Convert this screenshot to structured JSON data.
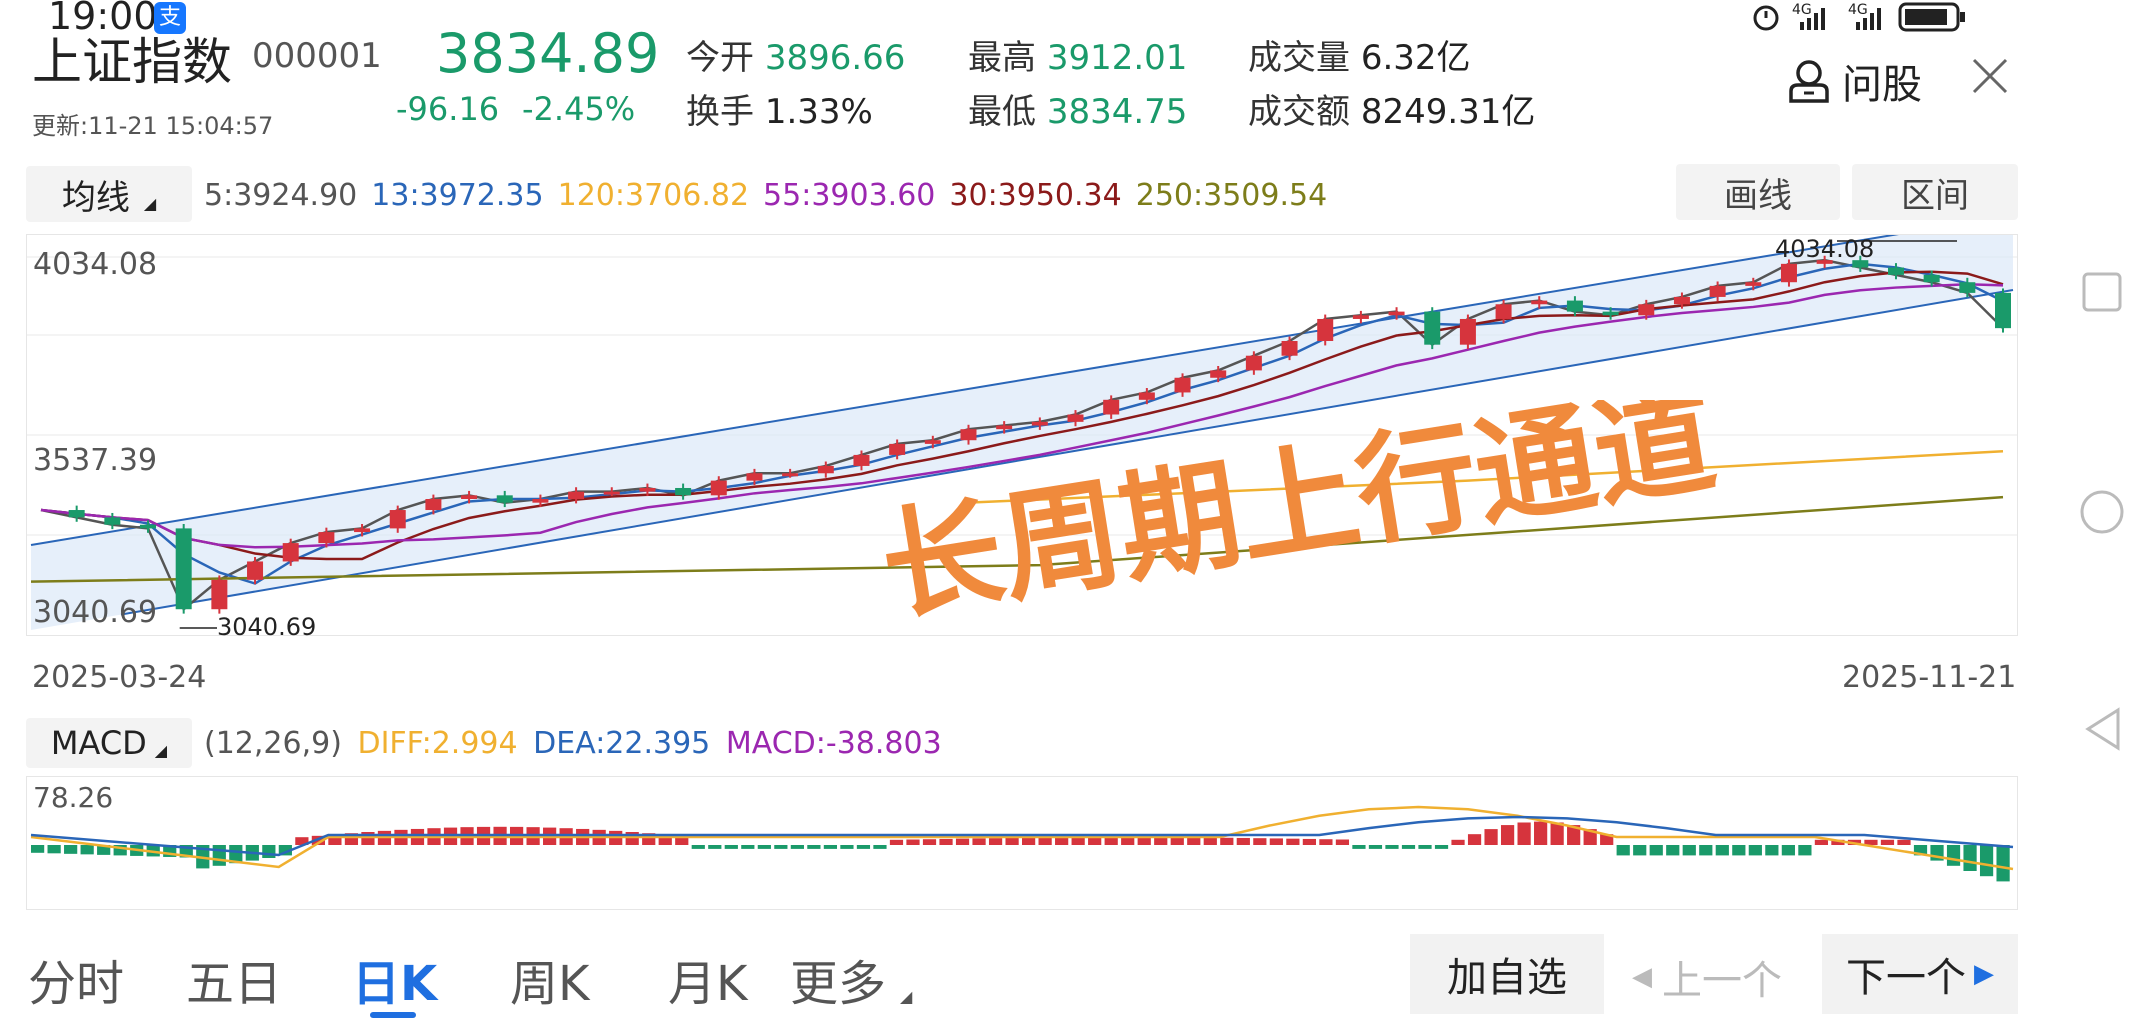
{
  "status": {
    "time": "19:00",
    "app_badge": "支",
    "network": "4G",
    "network2": "4G"
  },
  "header": {
    "index_name": "上证指数",
    "code": "000001",
    "update_time": "更新:11-21 15:04:57",
    "price": "3834.89",
    "change": "-96.16",
    "change_pct": "-2.45%",
    "open_label": "今开",
    "open": "3896.66",
    "turnover_label": "换手",
    "turnover": "1.33%",
    "high_label": "最高",
    "high": "3912.01",
    "low_label": "最低",
    "low": "3834.75",
    "volume_label": "成交量",
    "volume": "6.32亿",
    "amount_label": "成交额",
    "amount": "8249.31亿",
    "ask_label": "问股",
    "close_icon": "close-icon",
    "person_icon": "person-icon"
  },
  "ma_bar": {
    "selector": "均线",
    "items": [
      {
        "text": "5:3924.90",
        "color": "#555555"
      },
      {
        "text": "13:3972.35",
        "color": "#2a66b8"
      },
      {
        "text": "120:3706.82",
        "color": "#f0b030"
      },
      {
        "text": "55:3903.60",
        "color": "#9b27b0"
      },
      {
        "text": "30:3950.34",
        "color": "#8b1a1a"
      },
      {
        "text": "250:3509.54",
        "color": "#7d7d1a"
      }
    ],
    "draw_label": "画线",
    "range_label": "区间"
  },
  "kchart": {
    "y_top": "4034.08",
    "y_mid": "3537.39",
    "y_bottom": "3040.69",
    "high_marker": "4034.08",
    "low_marker": "3040.69",
    "date_start": "2025-03-24",
    "date_end": "2025-11-21",
    "annotation": "长周期上行通道",
    "annotation_color": "#f08a3c"
  },
  "chart_data": {
    "type": "candlestick",
    "title": "",
    "ylim": [
      3040.69,
      4034.08
    ],
    "x_range": [
      "2025-03-24",
      "2025-11-21"
    ],
    "moving_averages": [
      {
        "name": "5",
        "last": 3924.9
      },
      {
        "name": "13",
        "last": 3972.35
      },
      {
        "name": "120",
        "last": 3706.82
      },
      {
        "name": "55",
        "last": 3903.6
      },
      {
        "name": "30",
        "last": 3950.34
      },
      {
        "name": "250",
        "last": 3509.54
      }
    ],
    "close_path": [
      3340,
      3320,
      3300,
      3290,
      3070,
      3150,
      3200,
      3250,
      3280,
      3290,
      3340,
      3370,
      3380,
      3360,
      3370,
      3390,
      3390,
      3400,
      3380,
      3420,
      3440,
      3440,
      3460,
      3490,
      3520,
      3530,
      3560,
      3570,
      3580,
      3600,
      3640,
      3660,
      3700,
      3720,
      3760,
      3800,
      3860,
      3870,
      3880,
      3790,
      3860,
      3900,
      3910,
      3880,
      3870,
      3900,
      3920,
      3950,
      3960,
      4010,
      4020,
      4000,
      3980,
      3960,
      3931,
      3835
    ]
  },
  "macd_bar": {
    "selector": "MACD",
    "params": "(12,26,9)",
    "diff": "DIFF:2.994",
    "dea": "DEA:22.395",
    "macd": "MACD:-38.803",
    "y_top": "78.26"
  },
  "tabs": {
    "items": [
      "分时",
      "五日",
      "日K",
      "周K",
      "月K",
      "更多"
    ],
    "active": "日K"
  },
  "nav": {
    "add_watch": "加自选",
    "prev": "上一个",
    "next": "下一个"
  },
  "side": {
    "square": "square-icon",
    "circle": "circle-icon",
    "back": "back-icon"
  }
}
